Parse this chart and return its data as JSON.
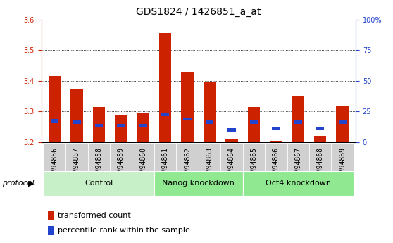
{
  "title": "GDS1824 / 1426851_a_at",
  "samples": [
    "GSM94856",
    "GSM94857",
    "GSM94858",
    "GSM94859",
    "GSM94860",
    "GSM94861",
    "GSM94862",
    "GSM94863",
    "GSM94864",
    "GSM94865",
    "GSM94866",
    "GSM94867",
    "GSM94868",
    "GSM94869"
  ],
  "red_values": [
    3.415,
    3.375,
    3.315,
    3.29,
    3.295,
    3.555,
    3.43,
    3.395,
    3.21,
    3.315,
    3.205,
    3.35,
    3.22,
    3.32
  ],
  "blue_values": [
    3.27,
    3.265,
    3.255,
    3.255,
    3.255,
    3.29,
    3.275,
    3.265,
    3.24,
    3.265,
    3.245,
    3.265,
    3.245,
    3.265
  ],
  "ymin": 3.2,
  "ymax": 3.6,
  "yticks_left": [
    3.2,
    3.3,
    3.4,
    3.5,
    3.6
  ],
  "yticks_right": [
    0,
    25,
    50,
    75,
    100
  ],
  "bar_width": 0.55,
  "red_color": "#cc2200",
  "blue_color": "#2244cc",
  "groups": [
    {
      "label": "Control",
      "indices": [
        0,
        1,
        2,
        3,
        4
      ],
      "color": "#c8f0c8"
    },
    {
      "label": "Nanog knockdown",
      "indices": [
        5,
        6,
        7,
        8
      ],
      "color": "#90e890"
    },
    {
      "label": "Oct4 knockdown",
      "indices": [
        9,
        10,
        11,
        12,
        13
      ],
      "color": "#90e890"
    }
  ],
  "title_fontsize": 10,
  "tick_fontsize": 7,
  "legend_fontsize": 8,
  "group_fontsize": 8
}
